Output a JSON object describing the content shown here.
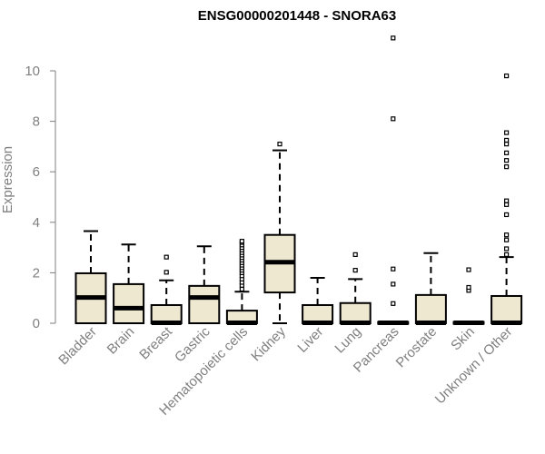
{
  "chart_data": {
    "type": "boxplot",
    "title": "ENSG00000201448 - SNORA63",
    "xlabel": "",
    "ylabel": "Expression",
    "ylim": [
      0,
      11.5
    ],
    "yticks": [
      0,
      2,
      4,
      6,
      8,
      10
    ],
    "colors": {
      "box_fill": "#efe8d0",
      "stroke": "#000000",
      "label": "#7f7f7f"
    },
    "categories": [
      "Bladder",
      "Brain",
      "Breast",
      "Gastric",
      "Hematopoietic cells",
      "Kidney",
      "Liver",
      "Lung",
      "Pancreas",
      "Prostate",
      "Skin",
      "Unknown / Other"
    ],
    "boxes": [
      {
        "name": "Bladder",
        "min": 0,
        "q1": 0,
        "median": 1.02,
        "q3": 1.98,
        "max": 3.65,
        "outliers": []
      },
      {
        "name": "Brain",
        "min": 0,
        "q1": 0,
        "median": 0.6,
        "q3": 1.55,
        "max": 3.12,
        "outliers": []
      },
      {
        "name": "Breast",
        "min": 0,
        "q1": 0,
        "median": 0.02,
        "q3": 0.72,
        "max": 1.7,
        "outliers": [
          2.02,
          2.62
        ]
      },
      {
        "name": "Gastric",
        "min": 0,
        "q1": 0,
        "median": 1.02,
        "q3": 1.48,
        "max": 3.05,
        "outliers": []
      },
      {
        "name": "Hematopoietic cells",
        "min": 0,
        "q1": 0,
        "median": 0.02,
        "q3": 0.5,
        "max": 1.25,
        "outliers": [
          1.35,
          1.5,
          1.62,
          1.75,
          1.88,
          2.0,
          2.1,
          2.2,
          2.3,
          2.4,
          2.5,
          2.6,
          2.7,
          2.8,
          2.9,
          3.0,
          3.1,
          3.2,
          3.25
        ]
      },
      {
        "name": "Kidney",
        "min": 0,
        "q1": 1.22,
        "median": 2.42,
        "q3": 3.5,
        "max": 6.85,
        "outliers": [
          7.1
        ]
      },
      {
        "name": "Liver",
        "min": 0,
        "q1": 0,
        "median": 0.02,
        "q3": 0.72,
        "max": 1.8,
        "outliers": []
      },
      {
        "name": "Lung",
        "min": 0,
        "q1": 0,
        "median": 0.02,
        "q3": 0.8,
        "max": 1.75,
        "outliers": [
          2.1,
          2.72
        ]
      },
      {
        "name": "Pancreas",
        "min": 0,
        "q1": 0,
        "median": 0.02,
        "q3": 0.05,
        "max": 0.05,
        "outliers": [
          0.78,
          1.55,
          2.15,
          8.1,
          11.3
        ]
      },
      {
        "name": "Prostate",
        "min": 0,
        "q1": 0,
        "median": 0.02,
        "q3": 1.12,
        "max": 2.78,
        "outliers": []
      },
      {
        "name": "Skin",
        "min": 0,
        "q1": 0,
        "median": 0.02,
        "q3": 0.05,
        "max": 0.05,
        "outliers": [
          1.3,
          1.42,
          2.12
        ]
      },
      {
        "name": "Unknown / Other",
        "min": 0,
        "q1": 0,
        "median": 0.02,
        "q3": 1.08,
        "max": 2.62,
        "outliers": [
          2.72,
          2.95,
          3.3,
          3.5,
          4.3,
          4.7,
          4.85,
          6.2,
          6.45,
          6.75,
          7.1,
          7.25,
          7.55,
          9.8
        ]
      }
    ]
  }
}
